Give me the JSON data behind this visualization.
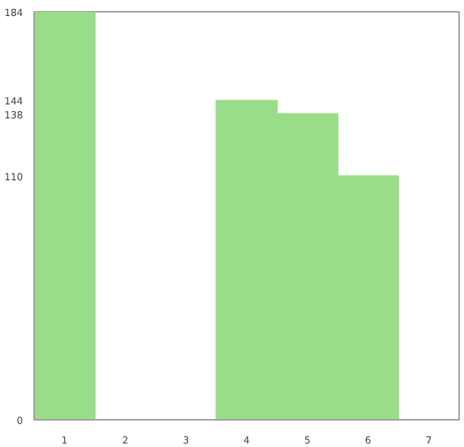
{
  "chart_data": {
    "type": "bar",
    "categories": [
      "1",
      "2",
      "3",
      "4",
      "5",
      "6",
      "7"
    ],
    "values": [
      184,
      0,
      0,
      144,
      138,
      110,
      0
    ],
    "color": "#99dd88",
    "ylim": [
      0,
      184
    ],
    "yticks": [
      0,
      110,
      138,
      144,
      184
    ],
    "grid": false
  }
}
